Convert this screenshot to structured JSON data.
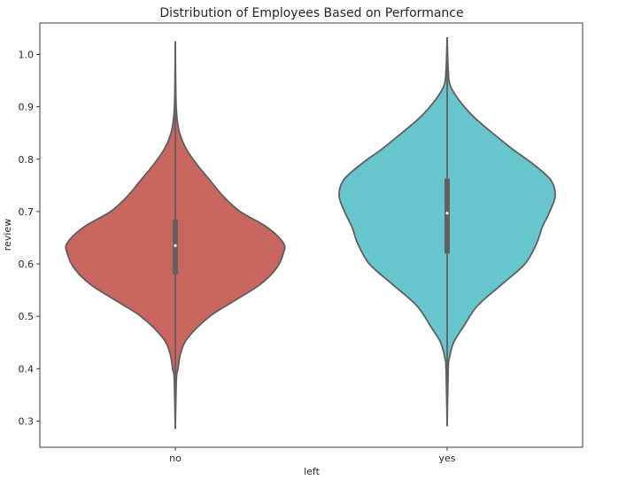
{
  "chart_data": {
    "type": "violin",
    "title": "Distribution of Employees Based on Performance",
    "xlabel": "left",
    "ylabel": "review",
    "categories": [
      "no",
      "yes"
    ],
    "ylim": [
      0.25,
      1.06
    ],
    "yticks": [
      0.3,
      0.4,
      0.5,
      0.6,
      0.7,
      0.8,
      0.9,
      1.0
    ],
    "ytick_labels": [
      "0.3",
      "0.4",
      "0.5",
      "0.6",
      "0.7",
      "0.8",
      "0.9",
      "1.0"
    ],
    "grid": false,
    "violins": [
      {
        "category": "no",
        "color": "#c9665f",
        "min": 0.285,
        "max": 1.025,
        "q1": 0.58,
        "median": 0.635,
        "q3": 0.685,
        "density": [
          [
            0.285,
            0.0
          ],
          [
            0.38,
            0.01
          ],
          [
            0.4,
            0.025
          ],
          [
            0.43,
            0.05
          ],
          [
            0.46,
            0.12
          ],
          [
            0.5,
            0.32
          ],
          [
            0.53,
            0.55
          ],
          [
            0.56,
            0.78
          ],
          [
            0.59,
            0.93
          ],
          [
            0.62,
            1.0
          ],
          [
            0.64,
            1.0
          ],
          [
            0.67,
            0.85
          ],
          [
            0.7,
            0.6
          ],
          [
            0.73,
            0.44
          ],
          [
            0.76,
            0.32
          ],
          [
            0.79,
            0.2
          ],
          [
            0.82,
            0.1
          ],
          [
            0.85,
            0.04
          ],
          [
            0.88,
            0.015
          ],
          [
            0.92,
            0.005
          ],
          [
            1.025,
            0.0
          ]
        ]
      },
      {
        "category": "yes",
        "color": "#67c5cd",
        "min": 0.29,
        "max": 1.033,
        "q1": 0.62,
        "median": 0.697,
        "q3": 0.763,
        "density": [
          [
            0.29,
            0.0
          ],
          [
            0.4,
            0.01
          ],
          [
            0.42,
            0.02
          ],
          [
            0.45,
            0.06
          ],
          [
            0.48,
            0.15
          ],
          [
            0.52,
            0.28
          ],
          [
            0.56,
            0.5
          ],
          [
            0.6,
            0.72
          ],
          [
            0.64,
            0.83
          ],
          [
            0.67,
            0.88
          ],
          [
            0.7,
            0.95
          ],
          [
            0.73,
            1.0
          ],
          [
            0.76,
            0.96
          ],
          [
            0.79,
            0.8
          ],
          [
            0.82,
            0.6
          ],
          [
            0.85,
            0.42
          ],
          [
            0.88,
            0.25
          ],
          [
            0.91,
            0.12
          ],
          [
            0.94,
            0.03
          ],
          [
            0.97,
            0.01
          ],
          [
            1.033,
            0.0
          ]
        ]
      }
    ]
  },
  "colors": {
    "edge": "#5f5f5f",
    "box": "#606060",
    "median_dot": "#ffffff",
    "axis": "#262626"
  }
}
